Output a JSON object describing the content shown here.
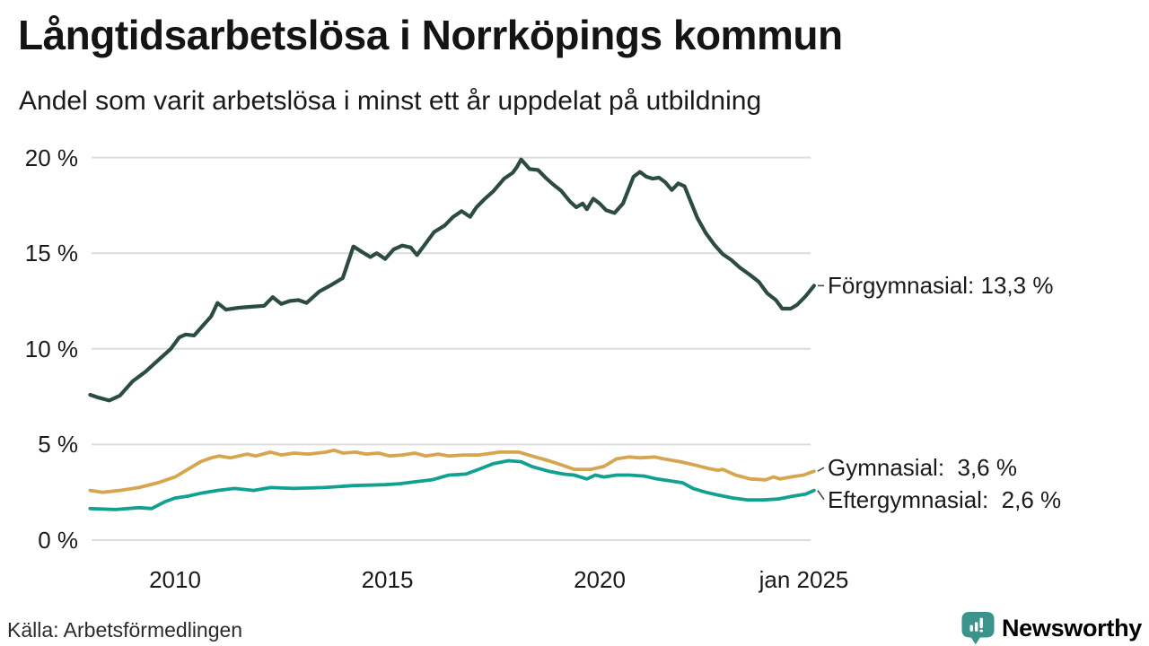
{
  "header": {
    "title": "Långtidsarbetslösa i Norrköpings kommun",
    "subtitle": "Andel som varit arbetslösa i minst ett år uppdelat på utbildning"
  },
  "footer": {
    "source": "Källa: Arbetsförmedlingen",
    "brand": "Newsworthy",
    "brand_icon": "newsworthy-chart-bubble-icon",
    "brand_color": "#3a948b"
  },
  "colors": {
    "gridline": "#dcdcdc",
    "text": "#1a1a1a",
    "forgymnasial": "#2c4c41",
    "gymnasial": "#d5a54f",
    "eftergymnasial": "#12a191"
  },
  "chart_data": {
    "type": "line",
    "title": "Långtidsarbetslösa i Norrköpings kommun",
    "subtitle": "Andel som varit arbetslösa i minst ett år uppdelat på utbildning",
    "unit": "%",
    "grid": true,
    "legend_position": "right-end-labels",
    "x_axis": {
      "range": [
        2008.0,
        2025.2
      ],
      "ticks": [
        {
          "label": "2010",
          "year": 2010
        },
        {
          "label": "2015",
          "year": 2015
        },
        {
          "label": "2020",
          "year": 2020
        },
        {
          "label": "jan 2025",
          "year": 2025
        }
      ]
    },
    "y_axis": {
      "range": [
        0,
        20
      ],
      "ticks": [
        {
          "label": "0 %",
          "value": 0
        },
        {
          "label": "5 %",
          "value": 5
        },
        {
          "label": "10 %",
          "value": 10
        },
        {
          "label": "15 %",
          "value": 15
        },
        {
          "label": "20 %",
          "value": 20
        }
      ]
    },
    "series": [
      {
        "id": "forgymnasial",
        "name": "Förgymnasial",
        "end_label": "Förgymnasial: 13,3 %",
        "last_value": "13,3 %",
        "color": "#2c4c41",
        "points": [
          [
            2008.0,
            7.6
          ],
          [
            2008.2,
            7.45
          ],
          [
            2008.45,
            7.3
          ],
          [
            2008.7,
            7.55
          ],
          [
            2009.0,
            8.3
          ],
          [
            2009.3,
            8.8
          ],
          [
            2009.6,
            9.4
          ],
          [
            2009.9,
            10.0
          ],
          [
            2010.1,
            10.6
          ],
          [
            2010.25,
            10.75
          ],
          [
            2010.45,
            10.7
          ],
          [
            2010.65,
            11.2
          ],
          [
            2010.85,
            11.7
          ],
          [
            2011.0,
            12.4
          ],
          [
            2011.2,
            12.05
          ],
          [
            2011.5,
            12.15
          ],
          [
            2011.8,
            12.2
          ],
          [
            2012.1,
            12.25
          ],
          [
            2012.3,
            12.7
          ],
          [
            2012.5,
            12.35
          ],
          [
            2012.7,
            12.5
          ],
          [
            2012.9,
            12.55
          ],
          [
            2013.1,
            12.4
          ],
          [
            2013.4,
            13.0
          ],
          [
            2013.65,
            13.3
          ],
          [
            2013.95,
            13.7
          ],
          [
            2014.2,
            15.35
          ],
          [
            2014.45,
            15.0
          ],
          [
            2014.6,
            14.8
          ],
          [
            2014.75,
            15.0
          ],
          [
            2014.95,
            14.7
          ],
          [
            2015.15,
            15.2
          ],
          [
            2015.35,
            15.4
          ],
          [
            2015.55,
            15.3
          ],
          [
            2015.7,
            14.9
          ],
          [
            2015.9,
            15.5
          ],
          [
            2016.1,
            16.1
          ],
          [
            2016.35,
            16.45
          ],
          [
            2016.55,
            16.9
          ],
          [
            2016.75,
            17.2
          ],
          [
            2016.95,
            16.9
          ],
          [
            2017.1,
            17.4
          ],
          [
            2017.3,
            17.85
          ],
          [
            2017.5,
            18.25
          ],
          [
            2017.75,
            18.9
          ],
          [
            2017.95,
            19.2
          ],
          [
            2018.05,
            19.5
          ],
          [
            2018.15,
            19.9
          ],
          [
            2018.35,
            19.4
          ],
          [
            2018.55,
            19.35
          ],
          [
            2018.75,
            18.9
          ],
          [
            2018.9,
            18.6
          ],
          [
            2019.1,
            18.25
          ],
          [
            2019.3,
            17.7
          ],
          [
            2019.45,
            17.4
          ],
          [
            2019.6,
            17.6
          ],
          [
            2019.7,
            17.3
          ],
          [
            2019.85,
            17.85
          ],
          [
            2020.0,
            17.6
          ],
          [
            2020.15,
            17.25
          ],
          [
            2020.35,
            17.1
          ],
          [
            2020.55,
            17.6
          ],
          [
            2020.8,
            19.0
          ],
          [
            2020.95,
            19.25
          ],
          [
            2021.1,
            19.0
          ],
          [
            2021.25,
            18.9
          ],
          [
            2021.4,
            18.95
          ],
          [
            2021.55,
            18.7
          ],
          [
            2021.7,
            18.3
          ],
          [
            2021.85,
            18.65
          ],
          [
            2022.0,
            18.5
          ],
          [
            2022.1,
            17.95
          ],
          [
            2022.3,
            16.85
          ],
          [
            2022.5,
            16.05
          ],
          [
            2022.7,
            15.45
          ],
          [
            2022.9,
            14.95
          ],
          [
            2023.1,
            14.65
          ],
          [
            2023.3,
            14.25
          ],
          [
            2023.55,
            13.85
          ],
          [
            2023.75,
            13.5
          ],
          [
            2023.95,
            12.9
          ],
          [
            2024.15,
            12.55
          ],
          [
            2024.3,
            12.1
          ],
          [
            2024.5,
            12.1
          ],
          [
            2024.65,
            12.3
          ],
          [
            2024.85,
            12.75
          ],
          [
            2025.05,
            13.3
          ]
        ]
      },
      {
        "id": "gymnasial",
        "name": "Gymnasial",
        "end_label": "Gymnasial:  3,6 %",
        "last_value": "3,6 %",
        "color": "#d5a54f",
        "points": [
          [
            2008.0,
            2.6
          ],
          [
            2008.3,
            2.5
          ],
          [
            2008.7,
            2.6
          ],
          [
            2009.15,
            2.75
          ],
          [
            2009.6,
            3.0
          ],
          [
            2010.0,
            3.3
          ],
          [
            2010.3,
            3.7
          ],
          [
            2010.6,
            4.1
          ],
          [
            2010.85,
            4.3
          ],
          [
            2011.05,
            4.4
          ],
          [
            2011.3,
            4.3
          ],
          [
            2011.7,
            4.5
          ],
          [
            2011.9,
            4.4
          ],
          [
            2012.25,
            4.6
          ],
          [
            2012.5,
            4.45
          ],
          [
            2012.8,
            4.55
          ],
          [
            2013.15,
            4.5
          ],
          [
            2013.55,
            4.6
          ],
          [
            2013.75,
            4.7
          ],
          [
            2013.95,
            4.55
          ],
          [
            2014.25,
            4.6
          ],
          [
            2014.5,
            4.5
          ],
          [
            2014.8,
            4.55
          ],
          [
            2015.05,
            4.4
          ],
          [
            2015.35,
            4.45
          ],
          [
            2015.65,
            4.55
          ],
          [
            2015.9,
            4.4
          ],
          [
            2016.2,
            4.5
          ],
          [
            2016.45,
            4.4
          ],
          [
            2016.8,
            4.45
          ],
          [
            2017.15,
            4.45
          ],
          [
            2017.65,
            4.6
          ],
          [
            2018.1,
            4.6
          ],
          [
            2018.4,
            4.4
          ],
          [
            2018.8,
            4.15
          ],
          [
            2019.15,
            3.9
          ],
          [
            2019.4,
            3.7
          ],
          [
            2019.8,
            3.7
          ],
          [
            2020.1,
            3.85
          ],
          [
            2020.4,
            4.25
          ],
          [
            2020.7,
            4.35
          ],
          [
            2020.95,
            4.3
          ],
          [
            2021.3,
            4.35
          ],
          [
            2021.5,
            4.25
          ],
          [
            2021.9,
            4.1
          ],
          [
            2022.2,
            3.95
          ],
          [
            2022.55,
            3.75
          ],
          [
            2022.8,
            3.65
          ],
          [
            2022.9,
            3.7
          ],
          [
            2023.2,
            3.4
          ],
          [
            2023.55,
            3.2
          ],
          [
            2023.9,
            3.15
          ],
          [
            2024.1,
            3.3
          ],
          [
            2024.25,
            3.2
          ],
          [
            2024.5,
            3.3
          ],
          [
            2024.8,
            3.4
          ],
          [
            2025.05,
            3.6
          ]
        ]
      },
      {
        "id": "eftergymnasial",
        "name": "Eftergymnasial",
        "end_label": "Eftergymnasial:  2,6 %",
        "last_value": "2,6 %",
        "color": "#12a191",
        "points": [
          [
            2008.0,
            1.65
          ],
          [
            2008.6,
            1.6
          ],
          [
            2009.15,
            1.7
          ],
          [
            2009.45,
            1.65
          ],
          [
            2009.75,
            2.0
          ],
          [
            2010.0,
            2.2
          ],
          [
            2010.3,
            2.3
          ],
          [
            2010.6,
            2.45
          ],
          [
            2011.0,
            2.6
          ],
          [
            2011.4,
            2.7
          ],
          [
            2011.85,
            2.6
          ],
          [
            2012.25,
            2.75
          ],
          [
            2012.8,
            2.7
          ],
          [
            2013.5,
            2.75
          ],
          [
            2014.2,
            2.85
          ],
          [
            2014.95,
            2.9
          ],
          [
            2015.3,
            2.95
          ],
          [
            2015.65,
            3.05
          ],
          [
            2016.05,
            3.15
          ],
          [
            2016.45,
            3.4
          ],
          [
            2016.85,
            3.45
          ],
          [
            2017.15,
            3.7
          ],
          [
            2017.5,
            4.0
          ],
          [
            2017.85,
            4.15
          ],
          [
            2018.15,
            4.1
          ],
          [
            2018.4,
            3.85
          ],
          [
            2018.8,
            3.6
          ],
          [
            2019.15,
            3.45
          ],
          [
            2019.4,
            3.4
          ],
          [
            2019.7,
            3.2
          ],
          [
            2019.9,
            3.4
          ],
          [
            2020.1,
            3.3
          ],
          [
            2020.4,
            3.4
          ],
          [
            2020.7,
            3.4
          ],
          [
            2021.05,
            3.35
          ],
          [
            2021.35,
            3.2
          ],
          [
            2021.65,
            3.1
          ],
          [
            2021.95,
            3.0
          ],
          [
            2022.2,
            2.7
          ],
          [
            2022.5,
            2.5
          ],
          [
            2022.8,
            2.35
          ],
          [
            2023.15,
            2.2
          ],
          [
            2023.5,
            2.1
          ],
          [
            2023.85,
            2.1
          ],
          [
            2024.2,
            2.15
          ],
          [
            2024.55,
            2.3
          ],
          [
            2024.85,
            2.4
          ],
          [
            2025.05,
            2.6
          ]
        ]
      }
    ]
  }
}
